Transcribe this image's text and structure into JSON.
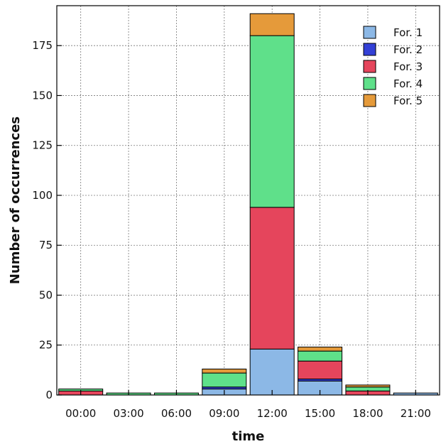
{
  "chart_data": {
    "type": "bar",
    "stacked": true,
    "title": "",
    "xlabel": "time",
    "ylabel": "Number of occurrences",
    "categories": [
      "00:00",
      "03:00",
      "06:00",
      "09:00",
      "12:00",
      "15:00",
      "18:00",
      "21:00"
    ],
    "series": [
      {
        "name": "For. 1",
        "color": "#8cb8e6",
        "values": [
          0,
          0,
          0,
          3,
          23,
          7,
          0,
          1
        ]
      },
      {
        "name": "For. 2",
        "color": "#3340d6",
        "values": [
          0,
          0,
          0,
          1,
          0,
          1,
          0,
          0
        ]
      },
      {
        "name": "For. 3",
        "color": "#e5455c",
        "values": [
          2,
          0,
          0,
          0,
          71,
          9,
          2,
          0
        ]
      },
      {
        "name": "For. 4",
        "color": "#5fe08a",
        "values": [
          1,
          1,
          1,
          7,
          86,
          5,
          2,
          0
        ]
      },
      {
        "name": "For. 5",
        "color": "#e59a3a",
        "values": [
          0,
          0,
          0,
          2,
          11,
          2,
          1,
          0
        ]
      }
    ],
    "ylim": [
      0,
      195
    ],
    "yticks": [
      0,
      25,
      50,
      75,
      100,
      125,
      150,
      175
    ],
    "grid": true,
    "legend_position": "top-right"
  }
}
